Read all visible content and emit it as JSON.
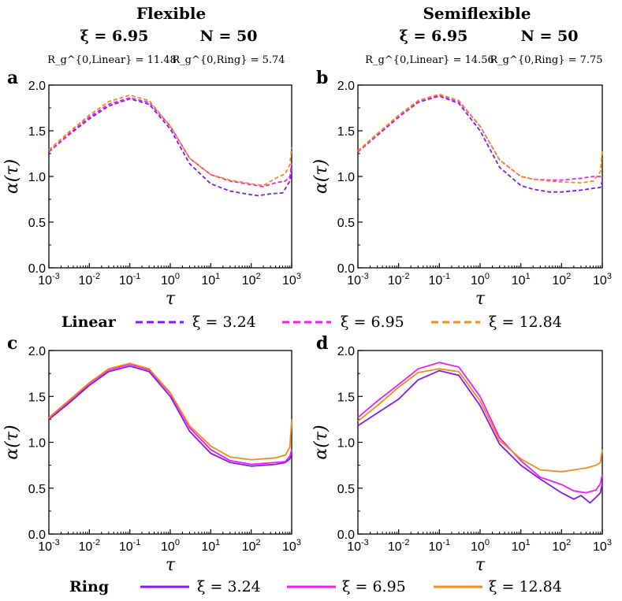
{
  "headers": {
    "left": {
      "title": "Flexible",
      "xi": "ξ = 6.95",
      "n": "N = 50",
      "rg_linear": "R_g^{0,Linear} = 11.48",
      "rg_ring": "R_g^{0,Ring} = 5.74"
    },
    "right": {
      "title": "Semiflexible",
      "xi": "ξ = 6.95",
      "n": "N = 50",
      "rg_linear": "R_g^{0,Linear} = 14.56",
      "rg_ring": "R_g^{0,Ring} = 7.75"
    }
  },
  "legends": {
    "linear": {
      "label": "Linear",
      "items": [
        "ξ = 3.24",
        "ξ = 6.95",
        "ξ = 12.84"
      ]
    },
    "ring": {
      "label": "Ring",
      "items": [
        "ξ = 3.24",
        "ξ = 6.95",
        "ξ = 12.84"
      ]
    }
  },
  "colors": {
    "xi_3_24": "#7f1bf2",
    "xi_6_95": "#f21bf2",
    "xi_12_84": "#f28c1b"
  },
  "chart_data": [
    {
      "panel": "a",
      "type": "line",
      "style": "dashed",
      "xlabel": "τ",
      "ylabel": "α(τ)",
      "xscale": "log",
      "xlim": [
        0.001,
        1000
      ],
      "ylim": [
        0.0,
        2.0
      ],
      "xticks": [
        "10-3",
        "10-2",
        "10-1",
        "100",
        "101",
        "102",
        "103"
      ],
      "yticks": [
        "0.0",
        "0.5",
        "1.0",
        "1.5",
        "2.0"
      ],
      "series": [
        {
          "name": "ξ = 3.24",
          "x": [
            0.001,
            0.003,
            0.01,
            0.03,
            0.1,
            0.3,
            1,
            3,
            10,
            30,
            100,
            150,
            300,
            600,
            900,
            1000
          ],
          "y": [
            1.27,
            1.45,
            1.63,
            1.77,
            1.85,
            1.79,
            1.52,
            1.14,
            0.92,
            0.84,
            0.8,
            0.79,
            0.81,
            0.82,
            0.95,
            1.1
          ]
        },
        {
          "name": "ξ = 6.95",
          "x": [
            0.001,
            0.003,
            0.01,
            0.03,
            0.1,
            0.3,
            1,
            3,
            10,
            30,
            100,
            200,
            400,
            700,
            900,
            1000
          ],
          "y": [
            1.27,
            1.46,
            1.65,
            1.79,
            1.86,
            1.81,
            1.55,
            1.2,
            1.02,
            0.95,
            0.91,
            0.89,
            0.93,
            0.95,
            1.0,
            1.15
          ]
        },
        {
          "name": "ξ = 12.84",
          "x": [
            0.001,
            0.003,
            0.01,
            0.03,
            0.1,
            0.3,
            1,
            3,
            10,
            30,
            100,
            200,
            400,
            700,
            900,
            1000
          ],
          "y": [
            1.29,
            1.48,
            1.67,
            1.82,
            1.89,
            1.83,
            1.55,
            1.2,
            1.02,
            0.96,
            0.92,
            0.9,
            0.98,
            1.03,
            1.13,
            1.32
          ]
        }
      ]
    },
    {
      "panel": "b",
      "type": "line",
      "style": "dashed",
      "xlabel": "τ",
      "ylabel": "α(τ)",
      "xscale": "log",
      "xlim": [
        0.001,
        1000
      ],
      "ylim": [
        0.0,
        2.0
      ],
      "xticks": [
        "10-3",
        "10-2",
        "10-1",
        "100",
        "101",
        "102",
        "103"
      ],
      "yticks": [
        "0.0",
        "0.5",
        "1.0",
        "1.5",
        "2.0"
      ],
      "series": [
        {
          "name": "ξ = 3.24",
          "x": [
            0.001,
            0.003,
            0.01,
            0.03,
            0.1,
            0.3,
            1,
            3,
            10,
            20,
            50,
            100,
            300,
            600,
            900,
            1000
          ],
          "y": [
            1.27,
            1.45,
            1.65,
            1.81,
            1.88,
            1.8,
            1.5,
            1.1,
            0.9,
            0.86,
            0.83,
            0.83,
            0.85,
            0.87,
            0.88,
            0.95
          ]
        },
        {
          "name": "ξ = 6.95",
          "x": [
            0.001,
            0.003,
            0.01,
            0.03,
            0.1,
            0.3,
            1,
            3,
            10,
            20,
            50,
            100,
            300,
            600,
            900,
            1000
          ],
          "y": [
            1.27,
            1.46,
            1.66,
            1.82,
            1.89,
            1.82,
            1.55,
            1.18,
            1.0,
            0.97,
            0.96,
            0.96,
            0.98,
            1.0,
            1.0,
            1.02
          ]
        },
        {
          "name": "ξ = 12.84",
          "x": [
            0.001,
            0.003,
            0.01,
            0.03,
            0.1,
            0.3,
            1,
            3,
            10,
            20,
            50,
            100,
            300,
            600,
            900,
            1000
          ],
          "y": [
            1.28,
            1.47,
            1.67,
            1.83,
            1.9,
            1.83,
            1.55,
            1.18,
            1.0,
            0.97,
            0.95,
            0.94,
            0.93,
            0.95,
            1.05,
            1.3
          ]
        }
      ]
    },
    {
      "panel": "c",
      "type": "line",
      "style": "solid",
      "xlabel": "τ",
      "ylabel": "α(τ)",
      "xscale": "log",
      "xlim": [
        0.001,
        1000
      ],
      "ylim": [
        0.0,
        2.0
      ],
      "xticks": [
        "10-3",
        "10-2",
        "10-1",
        "100",
        "101",
        "102",
        "103"
      ],
      "yticks": [
        "0.0",
        "0.5",
        "1.0",
        "1.5",
        "2.0"
      ],
      "series": [
        {
          "name": "ξ = 3.24",
          "x": [
            0.001,
            0.003,
            0.01,
            0.03,
            0.1,
            0.3,
            1,
            3,
            10,
            30,
            100,
            200,
            400,
            700,
            900,
            1000
          ],
          "y": [
            1.25,
            1.42,
            1.62,
            1.77,
            1.83,
            1.77,
            1.5,
            1.12,
            0.88,
            0.78,
            0.74,
            0.75,
            0.76,
            0.78,
            0.82,
            0.88
          ]
        },
        {
          "name": "ξ = 6.95",
          "x": [
            0.001,
            0.003,
            0.01,
            0.03,
            0.1,
            0.3,
            1,
            3,
            10,
            30,
            100,
            200,
            400,
            700,
            900,
            1000
          ],
          "y": [
            1.26,
            1.44,
            1.64,
            1.79,
            1.85,
            1.79,
            1.53,
            1.16,
            0.92,
            0.8,
            0.76,
            0.77,
            0.78,
            0.79,
            0.85,
            0.92
          ]
        },
        {
          "name": "ξ = 12.84",
          "x": [
            0.001,
            0.003,
            0.01,
            0.03,
            0.1,
            0.3,
            1,
            3,
            10,
            30,
            100,
            200,
            400,
            700,
            900,
            1000
          ],
          "y": [
            1.27,
            1.45,
            1.65,
            1.8,
            1.86,
            1.8,
            1.54,
            1.18,
            0.96,
            0.84,
            0.81,
            0.82,
            0.83,
            0.86,
            0.95,
            1.25
          ]
        }
      ]
    },
    {
      "panel": "d",
      "type": "line",
      "style": "solid",
      "xlabel": "τ",
      "ylabel": "α(τ)",
      "xscale": "log",
      "xlim": [
        0.001,
        1000
      ],
      "ylim": [
        0.0,
        2.0
      ],
      "xticks": [
        "10-3",
        "10-2",
        "10-1",
        "100",
        "101",
        "102",
        "103"
      ],
      "yticks": [
        "0.0",
        "0.5",
        "1.0",
        "1.5",
        "2.0"
      ],
      "series": [
        {
          "name": "ξ = 3.24",
          "x": [
            0.001,
            0.003,
            0.01,
            0.03,
            0.1,
            0.3,
            1,
            3,
            10,
            30,
            100,
            200,
            300,
            500,
            700,
            900,
            1000
          ],
          "y": [
            1.18,
            1.32,
            1.47,
            1.68,
            1.78,
            1.73,
            1.4,
            0.98,
            0.75,
            0.6,
            0.45,
            0.38,
            0.42,
            0.34,
            0.4,
            0.45,
            0.55
          ]
        },
        {
          "name": "ξ = 6.95",
          "x": [
            0.001,
            0.003,
            0.01,
            0.03,
            0.1,
            0.3,
            1,
            3,
            10,
            30,
            100,
            200,
            400,
            700,
            900,
            1000
          ],
          "y": [
            1.27,
            1.45,
            1.63,
            1.8,
            1.87,
            1.82,
            1.5,
            1.05,
            0.8,
            0.62,
            0.54,
            0.47,
            0.45,
            0.48,
            0.55,
            0.65
          ]
        },
        {
          "name": "ξ = 12.84",
          "x": [
            0.001,
            0.003,
            0.01,
            0.03,
            0.1,
            0.3,
            1,
            3,
            10,
            30,
            100,
            200,
            400,
            700,
            900,
            1000
          ],
          "y": [
            1.23,
            1.4,
            1.6,
            1.76,
            1.8,
            1.77,
            1.45,
            1.02,
            0.82,
            0.7,
            0.68,
            0.7,
            0.72,
            0.75,
            0.78,
            0.92
          ]
        }
      ]
    }
  ]
}
